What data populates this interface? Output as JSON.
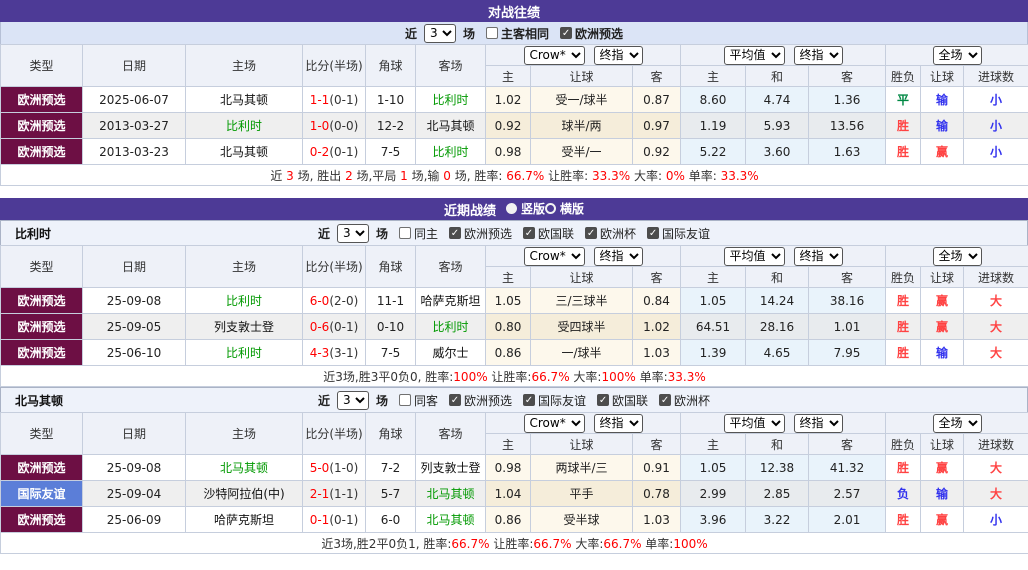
{
  "colors": {
    "titlebar_bg": "#4d3a96",
    "filterbar_bg": "#dbe4f6",
    "header_bg": "#eef1f8",
    "league_type_bg": "#6d0f44",
    "friendly_type_bg": "#5b7ed8",
    "team_highlight": "#009900",
    "score_red": "#ff0000",
    "win_red": "#ff4242",
    "lose_blue": "#3333ee",
    "draw_green": "#008844",
    "crow_col_bg": "#fdf8ec",
    "avg_col_bg": "#e9f3fb"
  },
  "table_headers": {
    "base_cols": [
      "类型",
      "日期",
      "主场",
      "比分(半场)",
      "角球",
      "客场"
    ],
    "odds_sub": [
      "主",
      "让球",
      "客"
    ],
    "avg_sub": [
      "主",
      "和",
      "客"
    ],
    "result_sub": [
      "胜负",
      "让球",
      "进球数"
    ],
    "dropdowns": {
      "crow": "Crow*",
      "final1": "终指",
      "avg": "平均值",
      "final2": "终指",
      "scope": "全场"
    }
  },
  "h2h": {
    "title": "对战往绩",
    "filter": {
      "prefix": "近",
      "select_value": "3",
      "suffix": "场",
      "checkboxes": [
        {
          "label": "主客相同",
          "checked": false
        },
        {
          "label": "欧洲预选",
          "checked": true
        }
      ]
    },
    "rows": [
      {
        "type": "欧洲预选",
        "type_style": "league",
        "date": "2025-06-07",
        "home": "北马其顿",
        "home_hl": false,
        "score": "1-1",
        "half": "(0-1)",
        "corner": "1-10",
        "away": "比利时",
        "away_hl": true,
        "odds": [
          "1.02",
          "受一/球半",
          "0.87"
        ],
        "avg": [
          "8.60",
          "4.74",
          "1.36"
        ],
        "results": [
          {
            "t": "平",
            "c": "green"
          },
          {
            "t": "输",
            "c": "blue"
          },
          {
            "t": "小",
            "c": "blue"
          }
        ]
      },
      {
        "type": "欧洲预选",
        "type_style": "league",
        "date": "2013-03-27",
        "home": "比利时",
        "home_hl": true,
        "score": "1-0",
        "half": "(0-0)",
        "corner": "12-2",
        "away": "北马其顿",
        "away_hl": false,
        "odds": [
          "0.92",
          "球半/两",
          "0.97"
        ],
        "avg": [
          "1.19",
          "5.93",
          "13.56"
        ],
        "results": [
          {
            "t": "胜",
            "c": "red"
          },
          {
            "t": "输",
            "c": "blue"
          },
          {
            "t": "小",
            "c": "blue"
          }
        ]
      },
      {
        "type": "欧洲预选",
        "type_style": "league",
        "date": "2013-03-23",
        "home": "北马其顿",
        "home_hl": false,
        "score": "0-2",
        "half": "(0-1)",
        "corner": "7-5",
        "away": "比利时",
        "away_hl": true,
        "odds": [
          "0.98",
          "受半/一",
          "0.92"
        ],
        "avg": [
          "5.22",
          "3.60",
          "1.63"
        ],
        "results": [
          {
            "t": "胜",
            "c": "red"
          },
          {
            "t": "赢",
            "c": "red"
          },
          {
            "t": "小",
            "c": "blue"
          }
        ]
      }
    ],
    "summary": [
      {
        "t": "近 ",
        "red": false
      },
      {
        "t": "3",
        "red": true
      },
      {
        "t": " 场, 胜出 ",
        "red": false
      },
      {
        "t": "2",
        "red": true
      },
      {
        "t": " 场,平局 ",
        "red": false
      },
      {
        "t": "1",
        "red": true
      },
      {
        "t": " 场,输 ",
        "red": false
      },
      {
        "t": "0",
        "red": true
      },
      {
        "t": " 场, 胜率: ",
        "red": false
      },
      {
        "t": "66.7%",
        "red": true
      },
      {
        "t": " 让胜率: ",
        "red": false
      },
      {
        "t": "33.3%",
        "red": true
      },
      {
        "t": " 大率: ",
        "red": false
      },
      {
        "t": "0%",
        "red": true
      },
      {
        "t": " 单率: ",
        "red": false
      },
      {
        "t": "33.3%",
        "red": true
      }
    ]
  },
  "recent": {
    "title": "近期战绩",
    "radios": [
      {
        "label": "竖版",
        "selected": true
      },
      {
        "label": "横版",
        "selected": false
      }
    ],
    "teams": [
      {
        "name": "比利时",
        "filter": {
          "prefix": "近",
          "select_value": "3",
          "suffix": "场",
          "checkboxes": [
            {
              "label": "同主",
              "checked": false
            },
            {
              "label": "欧洲预选",
              "checked": true
            },
            {
              "label": "欧国联",
              "checked": true
            },
            {
              "label": "欧洲杯",
              "checked": true
            },
            {
              "label": "国际友谊",
              "checked": true
            }
          ]
        },
        "rows": [
          {
            "type": "欧洲预选",
            "type_style": "league",
            "date": "25-09-08",
            "home": "比利时",
            "home_hl": true,
            "score": "6-0",
            "half": "(2-0)",
            "corner": "11-1",
            "away": "哈萨克斯坦",
            "away_hl": false,
            "odds": [
              "1.05",
              "三/三球半",
              "0.84"
            ],
            "avg": [
              "1.05",
              "14.24",
              "38.16"
            ],
            "results": [
              {
                "t": "胜",
                "c": "red"
              },
              {
                "t": "赢",
                "c": "red"
              },
              {
                "t": "大",
                "c": "red"
              }
            ]
          },
          {
            "type": "欧洲预选",
            "type_style": "league",
            "date": "25-09-05",
            "home": "列支敦士登",
            "home_hl": false,
            "score": "0-6",
            "half": "(0-1)",
            "corner": "0-10",
            "away": "比利时",
            "away_hl": true,
            "odds": [
              "0.80",
              "受四球半",
              "1.02"
            ],
            "avg": [
              "64.51",
              "28.16",
              "1.01"
            ],
            "results": [
              {
                "t": "胜",
                "c": "red"
              },
              {
                "t": "赢",
                "c": "red"
              },
              {
                "t": "大",
                "c": "red"
              }
            ]
          },
          {
            "type": "欧洲预选",
            "type_style": "league",
            "date": "25-06-10",
            "home": "比利时",
            "home_hl": true,
            "score": "4-3",
            "half": "(3-1)",
            "corner": "7-5",
            "away": "威尔士",
            "away_hl": false,
            "odds": [
              "0.86",
              "一/球半",
              "1.03"
            ],
            "avg": [
              "1.39",
              "4.65",
              "7.95"
            ],
            "results": [
              {
                "t": "胜",
                "c": "red"
              },
              {
                "t": "输",
                "c": "blue"
              },
              {
                "t": "大",
                "c": "red"
              }
            ]
          }
        ],
        "summary": [
          {
            "t": "近3场,胜3平0负0, 胜率:",
            "red": false
          },
          {
            "t": "100%",
            "red": true
          },
          {
            "t": " 让胜率:",
            "red": false
          },
          {
            "t": "66.7%",
            "red": true
          },
          {
            "t": " 大率:",
            "red": false
          },
          {
            "t": "100%",
            "red": true
          },
          {
            "t": " 单率:",
            "red": false
          },
          {
            "t": "33.3%",
            "red": true
          }
        ]
      },
      {
        "name": "北马其顿",
        "filter": {
          "prefix": "近",
          "select_value": "3",
          "suffix": "场",
          "checkboxes": [
            {
              "label": "同客",
              "checked": false
            },
            {
              "label": "欧洲预选",
              "checked": true
            },
            {
              "label": "国际友谊",
              "checked": true
            },
            {
              "label": "欧国联",
              "checked": true
            },
            {
              "label": "欧洲杯",
              "checked": true
            }
          ]
        },
        "rows": [
          {
            "type": "欧洲预选",
            "type_style": "league",
            "date": "25-09-08",
            "home": "北马其顿",
            "home_hl": true,
            "score": "5-0",
            "half": "(1-0)",
            "corner": "7-2",
            "away": "列支敦士登",
            "away_hl": false,
            "odds": [
              "0.98",
              "两球半/三",
              "0.91"
            ],
            "avg": [
              "1.05",
              "12.38",
              "41.32"
            ],
            "results": [
              {
                "t": "胜",
                "c": "red"
              },
              {
                "t": "赢",
                "c": "red"
              },
              {
                "t": "大",
                "c": "red"
              }
            ]
          },
          {
            "type": "国际友谊",
            "type_style": "friendly",
            "date": "25-09-04",
            "home": "沙特阿拉伯(中)",
            "home_hl": false,
            "score": "2-1",
            "half": "(1-1)",
            "corner": "5-7",
            "away": "北马其顿",
            "away_hl": true,
            "odds": [
              "1.04",
              "平手",
              "0.78"
            ],
            "avg": [
              "2.99",
              "2.85",
              "2.57"
            ],
            "results": [
              {
                "t": "负",
                "c": "blue"
              },
              {
                "t": "输",
                "c": "blue"
              },
              {
                "t": "大",
                "c": "red"
              }
            ]
          },
          {
            "type": "欧洲预选",
            "type_style": "league",
            "date": "25-06-09",
            "home": "哈萨克斯坦",
            "home_hl": false,
            "score": "0-1",
            "half": "(0-1)",
            "corner": "6-0",
            "away": "北马其顿",
            "away_hl": true,
            "odds": [
              "0.86",
              "受半球",
              "1.03"
            ],
            "avg": [
              "3.96",
              "3.22",
              "2.01"
            ],
            "results": [
              {
                "t": "胜",
                "c": "red"
              },
              {
                "t": "赢",
                "c": "red"
              },
              {
                "t": "小",
                "c": "blue"
              }
            ]
          }
        ],
        "summary": [
          {
            "t": "近3场,胜2平0负1, 胜率:",
            "red": false
          },
          {
            "t": "66.7%",
            "red": true
          },
          {
            "t": " 让胜率:",
            "red": false
          },
          {
            "t": "66.7%",
            "red": true
          },
          {
            "t": " 大率:",
            "red": false
          },
          {
            "t": "66.7%",
            "red": true
          },
          {
            "t": " 单率:",
            "red": false
          },
          {
            "t": "100%",
            "red": true
          }
        ]
      }
    ]
  }
}
